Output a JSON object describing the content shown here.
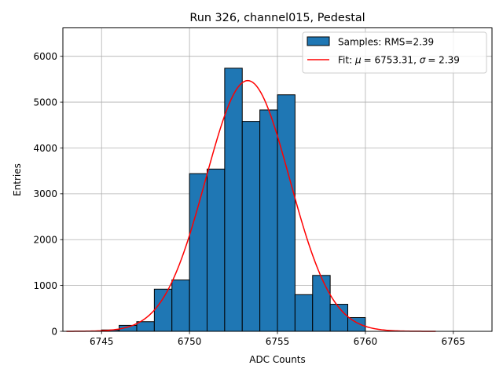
{
  "chart_data": {
    "type": "bar",
    "title": "Run 326, channel015, Pedestal",
    "xlabel": "ADC Counts",
    "ylabel": "Entries",
    "xlim": [
      6742.8,
      6767.2
    ],
    "ylim": [
      0,
      6620
    ],
    "xticks": [
      6745,
      6750,
      6755,
      6760,
      6765
    ],
    "yticks": [
      0,
      1000,
      2000,
      3000,
      4000,
      5000,
      6000
    ],
    "grid": true,
    "legend_position": "top-right",
    "histogram": {
      "name": "Samples: RMS=2.39",
      "color": "#1f77b4",
      "bins": [
        {
          "left": 6745,
          "right": 6746,
          "count": 30
        },
        {
          "left": 6746,
          "right": 6747,
          "count": 130
        },
        {
          "left": 6747,
          "right": 6748,
          "count": 210
        },
        {
          "left": 6748,
          "right": 6749,
          "count": 920
        },
        {
          "left": 6749,
          "right": 6750,
          "count": 1120
        },
        {
          "left": 6750,
          "right": 6751,
          "count": 3440
        },
        {
          "left": 6751,
          "right": 6752,
          "count": 3540
        },
        {
          "left": 6752,
          "right": 6753,
          "count": 5740
        },
        {
          "left": 6753,
          "right": 6754,
          "count": 4580
        },
        {
          "left": 6754,
          "right": 6755,
          "count": 4830
        },
        {
          "left": 6755,
          "right": 6756,
          "count": 5160
        },
        {
          "left": 6756,
          "right": 6757,
          "count": 800
        },
        {
          "left": 6757,
          "right": 6758,
          "count": 1220
        },
        {
          "left": 6758,
          "right": 6759,
          "count": 590
        },
        {
          "left": 6759,
          "right": 6760,
          "count": 300
        }
      ]
    },
    "fit": {
      "name_prefix": "Fit: ",
      "mu_label": "μ",
      "mu_value": "= 6753.31, ",
      "sigma_label": "σ",
      "sigma_value": "= 2.39",
      "color": "#ff0000",
      "mu": 6753.31,
      "sigma": 2.39,
      "amplitude": 5470,
      "x_range": [
        6743,
        6764
      ]
    }
  }
}
